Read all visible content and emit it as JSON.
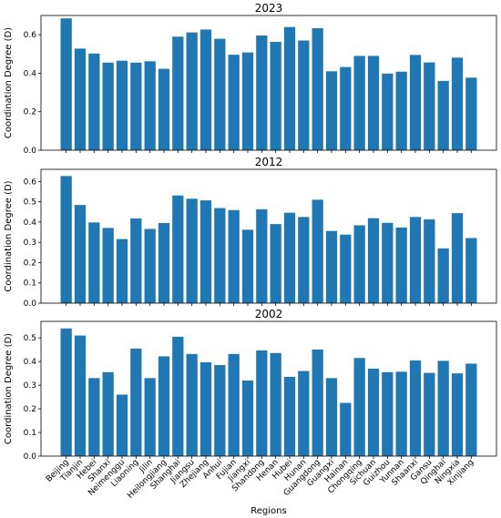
{
  "chart_data": [
    {
      "type": "bar",
      "title": "2023",
      "ylabel": "Coordination Degree (D)",
      "xlabel": "",
      "ylim": [
        0,
        0.7
      ],
      "yticks": [
        0.0,
        0.2,
        0.4,
        0.6
      ],
      "color": "#1f77b4",
      "show_xtick_labels": false,
      "grid": false,
      "categories": [
        "Beijing",
        "Tianjin",
        "Hebei",
        "Shanxi",
        "Neimenggu",
        "Liaoning",
        "Jilin",
        "Heilongjiang",
        "Shanghai",
        "Jiangsu",
        "Zhejiang",
        "Anhui",
        "Fujian",
        "Jiangxi",
        "Shandong",
        "Henan",
        "Hubei",
        "Hunan",
        "Guangdong",
        "Guangxi",
        "Hainan",
        "Chongqing",
        "Sichuan",
        "Guizhou",
        "Yunnan",
        "Shaanxi",
        "Gansu",
        "Qinghai",
        "Ningxia",
        "Xinjiang"
      ],
      "values": [
        0.685,
        0.528,
        0.502,
        0.455,
        0.465,
        0.455,
        0.462,
        0.423,
        0.59,
        0.612,
        0.627,
        0.579,
        0.496,
        0.508,
        0.596,
        0.563,
        0.64,
        0.57,
        0.634,
        0.41,
        0.432,
        0.49,
        0.49,
        0.398,
        0.408,
        0.495,
        0.456,
        0.36,
        0.481,
        0.377
      ]
    },
    {
      "type": "bar",
      "title": "2012",
      "ylabel": "Coordination Degree (D)",
      "xlabel": "",
      "ylim": [
        0,
        0.66
      ],
      "yticks": [
        0.0,
        0.1,
        0.2,
        0.3,
        0.4,
        0.5,
        0.6
      ],
      "color": "#1f77b4",
      "show_xtick_labels": false,
      "grid": false,
      "categories": [
        "Beijing",
        "Tianjin",
        "Hebei",
        "Shanxi",
        "Neimenggu",
        "Liaoning",
        "Jilin",
        "Heilongjiang",
        "Shanghai",
        "Jiangsu",
        "Zhejiang",
        "Anhui",
        "Fujian",
        "Jiangxi",
        "Shandong",
        "Henan",
        "Hubei",
        "Hunan",
        "Guangdong",
        "Guangxi",
        "Hainan",
        "Chongqing",
        "Sichuan",
        "Guizhou",
        "Yunnan",
        "Shaanxi",
        "Gansu",
        "Qinghai",
        "Ningxia",
        "Xinjiang"
      ],
      "values": [
        0.627,
        0.484,
        0.398,
        0.371,
        0.316,
        0.418,
        0.366,
        0.395,
        0.531,
        0.515,
        0.507,
        0.469,
        0.459,
        0.362,
        0.463,
        0.39,
        0.446,
        0.425,
        0.51,
        0.356,
        0.338,
        0.384,
        0.419,
        0.396,
        0.373,
        0.425,
        0.413,
        0.27,
        0.444,
        0.321
      ]
    },
    {
      "type": "bar",
      "title": "2002",
      "ylabel": "Coordination Degree (D)",
      "xlabel": "Regions",
      "ylim": [
        0,
        0.57
      ],
      "yticks": [
        0.0,
        0.1,
        0.2,
        0.3,
        0.4,
        0.5
      ],
      "color": "#1f77b4",
      "show_xtick_labels": true,
      "grid": false,
      "categories": [
        "Beijing",
        "Tianjin",
        "Hebei",
        "Shanxi",
        "Neimenggu",
        "Liaoning",
        "Jilin",
        "Heilongjiang",
        "Shanghai",
        "Jiangsu",
        "Zhejiang",
        "Anhui",
        "Fujian",
        "Jiangxi",
        "Shandong",
        "Henan",
        "Hubei",
        "Hunan",
        "Guangdong",
        "Guangxi",
        "Hainan",
        "Chongqing",
        "Sichuan",
        "Guizhou",
        "Yunnan",
        "Shaanxi",
        "Gansu",
        "Qinghai",
        "Ningxia",
        "Xinjiang"
      ],
      "values": [
        0.54,
        0.51,
        0.33,
        0.355,
        0.26,
        0.455,
        0.33,
        0.422,
        0.505,
        0.432,
        0.397,
        0.385,
        0.432,
        0.32,
        0.447,
        0.436,
        0.335,
        0.36,
        0.451,
        0.33,
        0.225,
        0.415,
        0.37,
        0.355,
        0.357,
        0.405,
        0.352,
        0.403,
        0.35,
        0.391
      ]
    }
  ]
}
